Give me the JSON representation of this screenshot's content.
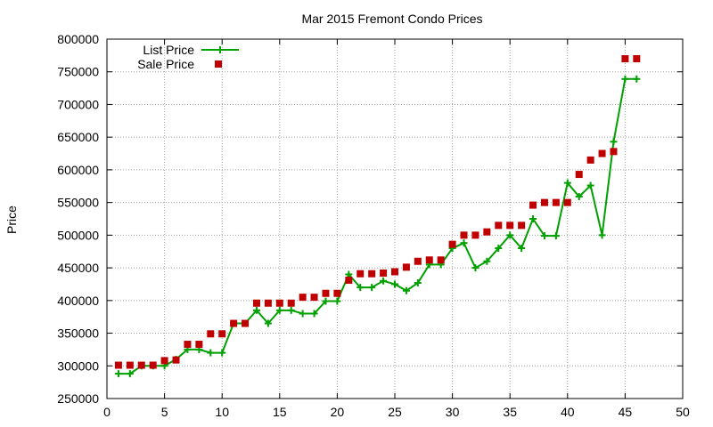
{
  "chart_data": {
    "type": "line",
    "title": "Mar 2015 Fremont Condo Prices",
    "xlabel": "",
    "ylabel": "Price",
    "xlim": [
      0,
      50
    ],
    "ylim": [
      250000,
      800000
    ],
    "xticks": [
      0,
      5,
      10,
      15,
      20,
      25,
      30,
      35,
      40,
      45,
      50
    ],
    "yticks": [
      250000,
      300000,
      350000,
      400000,
      450000,
      500000,
      550000,
      600000,
      650000,
      700000,
      750000,
      800000
    ],
    "grid": true,
    "legend_position": "top-left",
    "series": [
      {
        "name": "List Price",
        "style": "linespoints",
        "marker": "plus",
        "color": "#00a000",
        "x": [
          1,
          2,
          3,
          4,
          5,
          6,
          7,
          8,
          9,
          10,
          11,
          12,
          13,
          14,
          15,
          16,
          17,
          18,
          19,
          20,
          21,
          22,
          23,
          24,
          25,
          26,
          27,
          28,
          29,
          30,
          31,
          32,
          33,
          34,
          35,
          36,
          37,
          38,
          39,
          40,
          41,
          42,
          43,
          44,
          45,
          46
        ],
        "y": [
          288000,
          288000,
          300000,
          300000,
          300000,
          310000,
          325000,
          325000,
          320000,
          320000,
          365000,
          365000,
          385000,
          365000,
          385000,
          385000,
          380000,
          380000,
          399000,
          399000,
          440000,
          420000,
          420000,
          430000,
          425000,
          415000,
          427000,
          455000,
          455000,
          480000,
          488000,
          450000,
          460000,
          480000,
          500000,
          480000,
          525000,
          499000,
          499000,
          580000,
          559000,
          576000,
          500000,
          643000,
          739000,
          739000
        ]
      },
      {
        "name": "Sale Price",
        "style": "points",
        "marker": "square",
        "color": "#c00000",
        "x": [
          1,
          2,
          3,
          4,
          5,
          6,
          7,
          8,
          9,
          10,
          11,
          12,
          13,
          14,
          15,
          16,
          17,
          18,
          19,
          20,
          21,
          22,
          23,
          24,
          25,
          26,
          27,
          28,
          29,
          30,
          31,
          32,
          33,
          34,
          35,
          36,
          37,
          38,
          39,
          40,
          41,
          42,
          43,
          44,
          45,
          46
        ],
        "y": [
          301000,
          301000,
          301000,
          301000,
          308000,
          309000,
          333000,
          333000,
          349000,
          349000,
          365000,
          365000,
          396000,
          396000,
          396000,
          396000,
          405000,
          405000,
          411000,
          411000,
          431000,
          441000,
          441000,
          442000,
          444000,
          451000,
          460000,
          462000,
          462000,
          486000,
          500000,
          500000,
          505000,
          515000,
          515000,
          515000,
          546000,
          550000,
          550000,
          550000,
          593000,
          615000,
          625000,
          628000,
          770000,
          770000
        ]
      }
    ]
  }
}
